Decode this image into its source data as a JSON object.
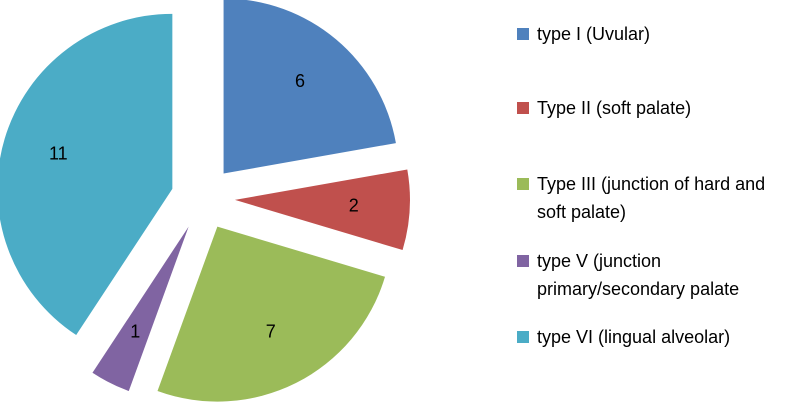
{
  "chart_data": {
    "type": "pie",
    "exploded": true,
    "categories": [
      "type I (Uvular)",
      "Type II (soft palate)",
      "Type III (junction of hard and soft palate)",
      "type V (junction primary/secondary palate",
      "type VI (lingual alveolar)"
    ],
    "values": [
      6,
      2,
      7,
      1,
      11
    ],
    "colors": [
      "#4f81bd",
      "#c0504d",
      "#9bbb59",
      "#8064a2",
      "#4bacc6"
    ],
    "legend": "right"
  }
}
